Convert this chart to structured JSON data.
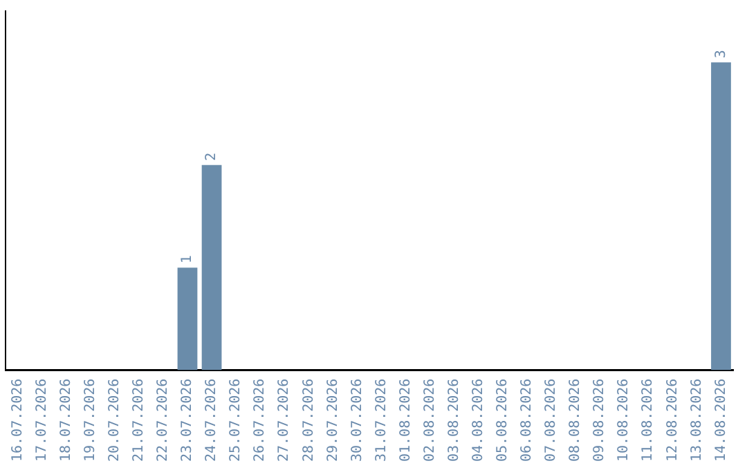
{
  "chart_data": {
    "type": "bar",
    "categories": [
      "16.07.2026",
      "17.07.2026",
      "18.07.2026",
      "19.07.2026",
      "20.07.2026",
      "21.07.2026",
      "22.07.2026",
      "23.07.2026",
      "24.07.2026",
      "25.07.2026",
      "26.07.2026",
      "27.07.2026",
      "28.07.2026",
      "29.07.2026",
      "30.07.2026",
      "31.07.2026",
      "01.08.2026",
      "02.08.2026",
      "03.08.2026",
      "04.08.2026",
      "05.08.2026",
      "06.08.2026",
      "07.08.2026",
      "08.08.2026",
      "09.08.2026",
      "10.08.2026",
      "11.08.2026",
      "12.08.2026",
      "13.08.2026",
      "14.08.2026"
    ],
    "values": [
      0,
      0,
      0,
      0,
      0,
      0,
      0,
      1,
      2,
      0,
      0,
      0,
      0,
      0,
      0,
      0,
      0,
      0,
      0,
      0,
      0,
      0,
      0,
      0,
      0,
      0,
      0,
      0,
      0,
      3
    ],
    "value_labels": [
      null,
      null,
      null,
      null,
      null,
      null,
      null,
      "1",
      "2",
      null,
      null,
      null,
      null,
      null,
      null,
      null,
      null,
      null,
      null,
      null,
      null,
      null,
      null,
      null,
      null,
      null,
      null,
      null,
      null,
      "3"
    ],
    "color": "#6a8caa",
    "tick_labels": "x",
    "grid": false,
    "legend": false
  }
}
